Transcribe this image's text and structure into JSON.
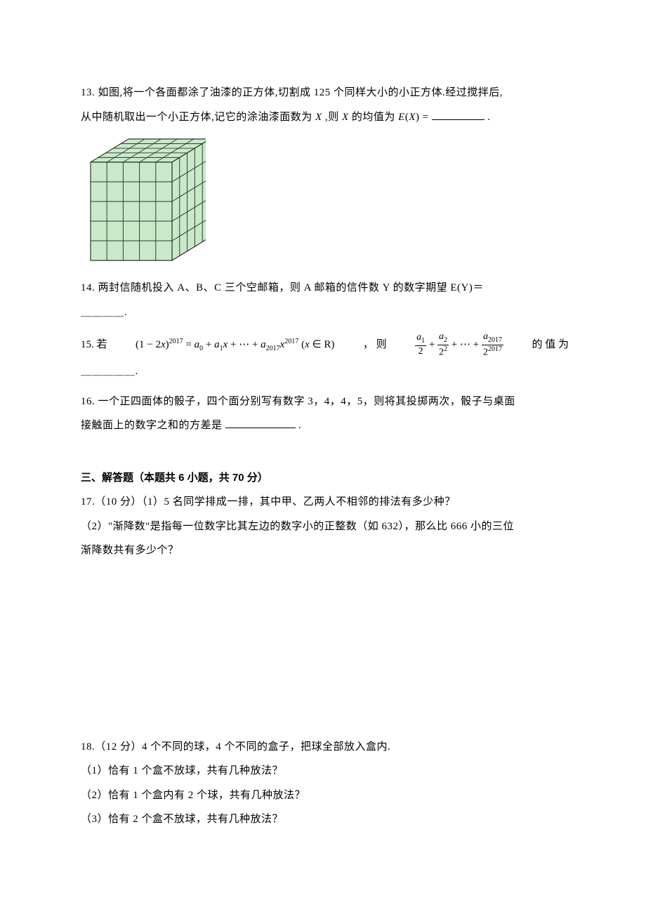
{
  "q13": {
    "line1": "13.  如图,将一个各面都涂了油漆的正方体,切割成 125 个同样大小的小正方体.经过搅拌后,",
    "line2_pre": "从中随机取出一个小正方体,记它的涂油漆面数为",
    "line2_mid": ",则",
    "line2_post": "的均值为",
    "line2_end": "."
  },
  "cube": {
    "size": 170,
    "depth": 60,
    "n": 5,
    "face_fill": "#c8eac8",
    "stroke": "#333333",
    "stroke_w": 1.2
  },
  "q14": {
    "line1": "14.  两封信随机投入 A、B、C 三个空邮箱，则 A 邮箱的信件数 Y 的数字期望 E(Y)＝",
    "underline_label": "＿＿＿＿."
  },
  "q15": {
    "prefix": "15.    若",
    "mid": "，    则",
    "suffix": "的   值   为",
    "underline_label": "＿＿＿＿＿."
  },
  "q16": {
    "line1": "16.  一个正四面体的骰子，四个面分别写有数字 3，4，4，5，则将其投掷两次，骰子与桌面",
    "line2_pre": "接触面上的数字之和的方差是",
    "line2_end": "."
  },
  "section3": {
    "title": "三、解答题（本题共 6 小题，共 70 分）"
  },
  "q17": {
    "line1": "17.（10 分）（1）5 名同学排成一排，其中甲、乙两人不相邻的排法有多少种？",
    "line2": "（2）\"渐降数\"是指每一位数字比其左边的数字小的正整数（如 632），那么比 666 小的三位",
    "line3": "渐降数共有多少个？"
  },
  "q18": {
    "line1": "18.（12 分）4 个不同的球，4 个不同的盒子，把球全部放入盒内.",
    "line2": "（1）恰有 1 个盒不放球，共有几种放法？",
    "line3": "（2）恰有 1 个盒内有 2 个球，共有几种放法？",
    "line4": "（3）恰有 2 个盒不放球，共有几种放法？"
  }
}
